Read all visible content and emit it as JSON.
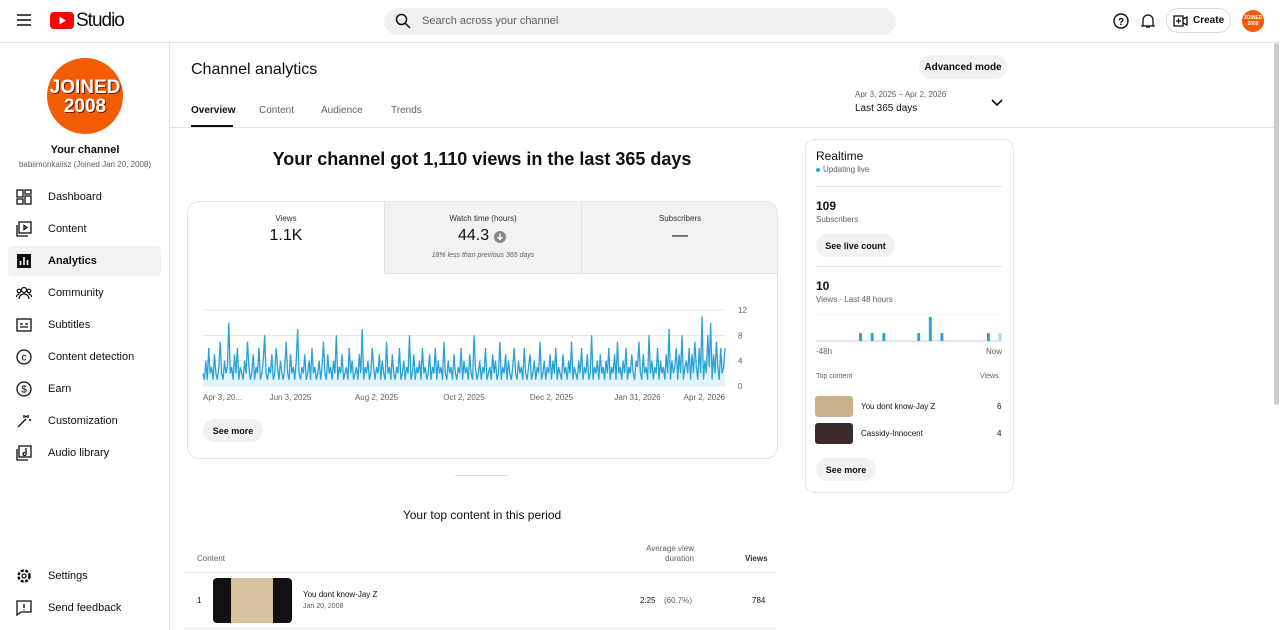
{
  "header": {
    "logo": "Studio",
    "search_placeholder": "Search across your channel",
    "create": "Create"
  },
  "sidebar": {
    "avatar_text": [
      "JOINED",
      "2008"
    ],
    "channel_label": "Your channel",
    "handle": "babiimonkaiisz (Joined Jan 20, 2008)",
    "nav": [
      "Dashboard",
      "Content",
      "Analytics",
      "Community",
      "Subtitles",
      "Content detection",
      "Earn",
      "Customization",
      "Audio library"
    ],
    "footer_nav": [
      "Settings",
      "Send feedback"
    ]
  },
  "page": {
    "title": "Channel analytics",
    "tabs": [
      "Overview",
      "Content",
      "Audience",
      "Trends"
    ],
    "advanced_mode": "Advanced mode",
    "date_range": "Apr 3, 2025 – Apr 2, 2026",
    "date_preset": "Last 365 days",
    "headline": "Your channel got 1,110 views in the last 365 days",
    "see_more": "See more"
  },
  "metrics": [
    {
      "label": "Views",
      "value": "1.1K"
    },
    {
      "label": "Watch time (hours)",
      "value": "44.3",
      "note": "18% less than previous 365 days"
    },
    {
      "label": "Subscribers",
      "value": "—"
    }
  ],
  "chart_data": [
    {
      "type": "area",
      "color": "#2aa3d3",
      "fill": "#e3f3fa",
      "grid": true,
      "xlim": [
        0,
        364
      ],
      "ylim": [
        0,
        12
      ],
      "yticks": [
        0,
        4,
        8,
        12
      ],
      "xticks": [
        {
          "value": 0,
          "label": "Apr 3, 20..."
        },
        {
          "value": 61,
          "label": "Jun 3, 2025"
        },
        {
          "value": 121,
          "label": "Aug 2, 2025"
        },
        {
          "value": 182,
          "label": "Oct 2, 2025"
        },
        {
          "value": 243,
          "label": "Dec 2, 2025"
        },
        {
          "value": 303,
          "label": "Jan 31, 2026"
        },
        {
          "value": 364,
          "label": "Apr 2, 2026"
        }
      ],
      "values": [
        2,
        1,
        4,
        1,
        6,
        2,
        3,
        1,
        5,
        2,
        1,
        3,
        7,
        2,
        1,
        4,
        2,
        3,
        10,
        2,
        3,
        1,
        5,
        2,
        6,
        1,
        3,
        2,
        1,
        4,
        2,
        7,
        3,
        1,
        2,
        5,
        1,
        3,
        2,
        6,
        1,
        2,
        4,
        8,
        2,
        1,
        3,
        2,
        5,
        1,
        2,
        6,
        3,
        1,
        4,
        2,
        1,
        3,
        7,
        2,
        1,
        5,
        2,
        3,
        1,
        4,
        9,
        2,
        1,
        3,
        2,
        5,
        1,
        2,
        4,
        1,
        6,
        2,
        3,
        1,
        2,
        4,
        1,
        3,
        7,
        2,
        1,
        5,
        2,
        3,
        1,
        4,
        2,
        8,
        1,
        3,
        2,
        5,
        1,
        2,
        3,
        1,
        6,
        2,
        4,
        1,
        2,
        3,
        1,
        5,
        2,
        9,
        1,
        3,
        2,
        4,
        1,
        2,
        6,
        3,
        1,
        3,
        2,
        5,
        1,
        4,
        2,
        1,
        7,
        2,
        3,
        1,
        5,
        2,
        1,
        3,
        2,
        6,
        1,
        2,
        4,
        1,
        3,
        2,
        8,
        1,
        2,
        5,
        1,
        3,
        2,
        4,
        1,
        6,
        2,
        3,
        1,
        2,
        5,
        1,
        3,
        2,
        6,
        1,
        4,
        2,
        3,
        1,
        7,
        2,
        1,
        4,
        2,
        3,
        1,
        5,
        2,
        1,
        3,
        2,
        6,
        1,
        4,
        2,
        3,
        1,
        5,
        2,
        1,
        8,
        3,
        1,
        2,
        4,
        1,
        3,
        2,
        6,
        1,
        2,
        3,
        1,
        5,
        2,
        4,
        1,
        2,
        7,
        1,
        3,
        2,
        5,
        1,
        4,
        2,
        1,
        3,
        6,
        2,
        1,
        4,
        2,
        3,
        1,
        6,
        2,
        1,
        3,
        5,
        1,
        2,
        4,
        1,
        3,
        2,
        7,
        1,
        2,
        4,
        1,
        3,
        2,
        5,
        1,
        4,
        2,
        6,
        1,
        3,
        2,
        1,
        5,
        2,
        3,
        1,
        4,
        2,
        7,
        1,
        3,
        2,
        1,
        4,
        2,
        6,
        1,
        3,
        2,
        5,
        1,
        2,
        8,
        1,
        3,
        2,
        4,
        1,
        5,
        2,
        3,
        1,
        4,
        2,
        6,
        1,
        3,
        2,
        5,
        1,
        7,
        2,
        3,
        1,
        4,
        2,
        6,
        1,
        3,
        2,
        5,
        2,
        1,
        4,
        3,
        7,
        2,
        1,
        5,
        2,
        3,
        1,
        8,
        2,
        4,
        1,
        3,
        2,
        6,
        1,
        4,
        2,
        3,
        1,
        5,
        2,
        9,
        1,
        4,
        2,
        3,
        6,
        1,
        5,
        2,
        8,
        1,
        3,
        4,
        2,
        6,
        1,
        5,
        2,
        7,
        3,
        1,
        6,
        2,
        11,
        1,
        4,
        2,
        8,
        3,
        10,
        1,
        5,
        2,
        7,
        3,
        1,
        6,
        2,
        3,
        6
      ]
    },
    {
      "type": "bar",
      "color": "#2aa3d3",
      "current_color": "#a9d9ef",
      "categories": [
        "-48h",
        null,
        null,
        null,
        null,
        null,
        null,
        null,
        null,
        null,
        null,
        null,
        null,
        null,
        null,
        null,
        null,
        null,
        null,
        null,
        null,
        null,
        null,
        null,
        null,
        null,
        null,
        null,
        null,
        null,
        null,
        null,
        null,
        null,
        null,
        null,
        null,
        null,
        null,
        null,
        null,
        null,
        null,
        null,
        null,
        null,
        null,
        "Now"
      ],
      "values": [
        0,
        0,
        0,
        0,
        0,
        0,
        0,
        0,
        0,
        0,
        0,
        1,
        0,
        0,
        1,
        0,
        0,
        1,
        0,
        0,
        0,
        0,
        0,
        0,
        0,
        0,
        1,
        0,
        0,
        3,
        0,
        0,
        1,
        0,
        0,
        0,
        0,
        0,
        0,
        0,
        0,
        0,
        0,
        0,
        1,
        0,
        0,
        1
      ]
    }
  ],
  "top_content": {
    "title": "Your top content in this period",
    "columns": [
      "Content",
      "Average view duration",
      "Views"
    ],
    "rows": [
      {
        "rank": 1,
        "title": "You dont know-Jay Z",
        "date": "Jan 20, 2008",
        "avg_duration": "2:25",
        "avg_pct": "(60.7%)",
        "views": 784
      }
    ]
  },
  "realtime": {
    "title": "Realtime",
    "status": "Updating live",
    "subscribers": 109,
    "subscribers_label": "Subscribers",
    "see_live_count": "See live count",
    "views": 10,
    "views_label": "Views · Last 48 hours",
    "top_content_label": "Top content",
    "views_col": "Views",
    "items": [
      {
        "title": "You dont know-Jay Z",
        "views": 6
      },
      {
        "title": "Cassidy-Innocent",
        "views": 4
      }
    ],
    "see_more": "See more"
  }
}
